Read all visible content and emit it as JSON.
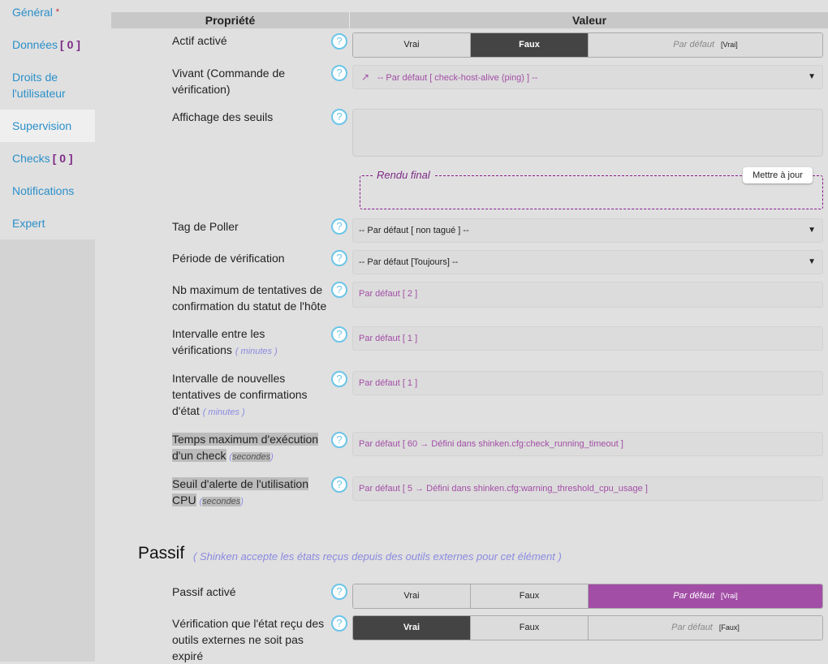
{
  "sidebar": {
    "items": [
      {
        "label": "Général",
        "required": "*"
      },
      {
        "label": "Données",
        "count": "[ 0 ]"
      },
      {
        "label": "Droits de l'utilisateur"
      },
      {
        "label": "Supervision",
        "active": true
      },
      {
        "label": "Checks",
        "count": "[ 0 ]"
      },
      {
        "label": "Notifications"
      },
      {
        "label": "Expert"
      }
    ]
  },
  "header": {
    "property": "Propriété",
    "value": "Valeur"
  },
  "help_glyph": "?",
  "rows": {
    "actif": {
      "label": "Actif activé",
      "opt_true": "Vrai",
      "opt_false": "Faux",
      "opt_default": "Par défaut",
      "default_value": "[Vrai]",
      "selected": "Faux"
    },
    "vivant": {
      "label": "Vivant (Commande de vérification)",
      "value": "-- Par défaut [ check-host-alive (ping) ] --"
    },
    "seuils": {
      "label": "Affichage des seuils",
      "value": "",
      "rendu_label": "Rendu final",
      "update_button": "Mettre à jour"
    },
    "poller": {
      "label": "Tag de Poller",
      "value": "-- Par défaut [ non tagué ] --"
    },
    "periode": {
      "label": "Période de vérification",
      "value": "-- Par défaut [Toujours] --"
    },
    "max_attempts": {
      "label": "Nb maximum de tentatives de confirmation du statut de l'hôte",
      "placeholder": "Par défaut [ 2 ]"
    },
    "interval": {
      "label": "Intervalle entre les vérifications",
      "unit": "( minutes )",
      "placeholder": "Par défaut [ 1 ]"
    },
    "retry_interval": {
      "label": "Intervalle de nouvelles tentatives de confirmations d'état",
      "unit": "( minutes )",
      "placeholder": "Par défaut [ 1 ]"
    },
    "timeout": {
      "label_1": "Temps maximum d'exécution",
      "label_2": "d'un check",
      "unit": "secondes",
      "placeholder": "Par défaut [ 60 → Défini dans shinken.cfg:check_running_timeout ]"
    },
    "cpu": {
      "label_1": "Seuil d'alerte de l'utilisation",
      "label_2": "CPU",
      "unit": "secondes",
      "placeholder": "Par défaut [ 5 → Défini dans shinken.cfg:warning_threshold_cpu_usage ]"
    }
  },
  "passif": {
    "title": "Passif",
    "subtitle": "( Shinken accepte les états reçus depuis des outils externes pour cet élément )",
    "active": {
      "label": "Passif activé",
      "opt_true": "Vrai",
      "opt_false": "Faux",
      "opt_default": "Par défaut",
      "default_value": "[Vrai]",
      "selected": "Par défaut"
    },
    "freshness": {
      "label": "Vérification que l'état reçu des outils externes ne soit pas expiré",
      "opt_true": "Vrai",
      "opt_false": "Faux",
      "opt_default": "Par défaut",
      "default_value": "[Faux]",
      "selected": "Vrai"
    }
  },
  "colors": {
    "accent": "#a24ea6",
    "link": "#2a8fc9",
    "selected_dark": "#444444",
    "help": "#6cc5e8"
  }
}
